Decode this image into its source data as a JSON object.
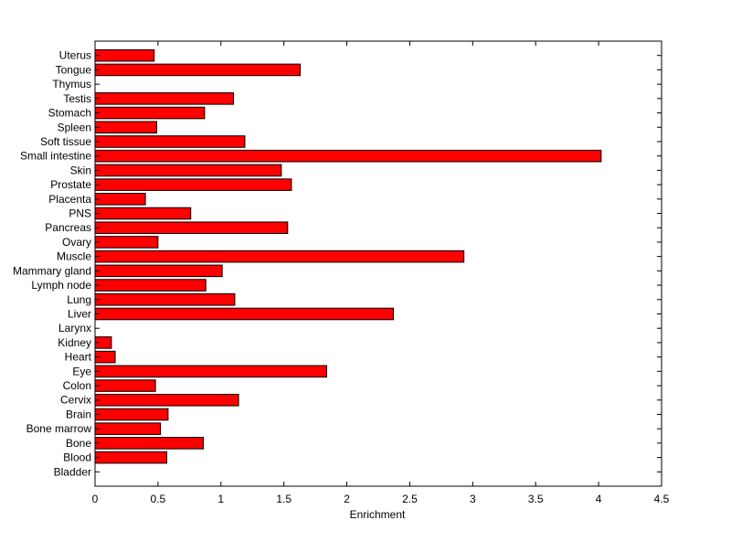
{
  "chart_data": {
    "type": "bar",
    "orientation": "horizontal",
    "title": "",
    "xlabel": "Enrichment",
    "ylabel": "",
    "xlim": [
      0,
      4.5
    ],
    "xticks": [
      "0",
      "0.5",
      "1",
      "1.5",
      "2",
      "2.5",
      "3",
      "3.5",
      "4",
      "4.5"
    ],
    "grid": false,
    "bar_color": "#ff0000",
    "categories": [
      "Bladder",
      "Blood",
      "Bone",
      "Bone marrow",
      "Brain",
      "Cervix",
      "Colon",
      "Eye",
      "Heart",
      "Kidney",
      "Larynx",
      "Liver",
      "Lung",
      "Lymph node",
      "Mammary gland",
      "Muscle",
      "Ovary",
      "Pancreas",
      "PNS",
      "Placenta",
      "Prostate",
      "Skin",
      "Small intestine",
      "Soft tissue",
      "Spleen",
      "Stomach",
      "Testis",
      "Thymus",
      "Tongue",
      "Uterus"
    ],
    "values": [
      0,
      0.57,
      0.86,
      0.52,
      0.58,
      1.14,
      0.48,
      1.84,
      0.16,
      0.13,
      0,
      2.37,
      1.11,
      0.88,
      1.01,
      2.93,
      0.5,
      1.53,
      0.76,
      0.4,
      1.56,
      1.48,
      4.02,
      1.19,
      0.49,
      0.87,
      1.1,
      0,
      1.63,
      0.47
    ]
  }
}
